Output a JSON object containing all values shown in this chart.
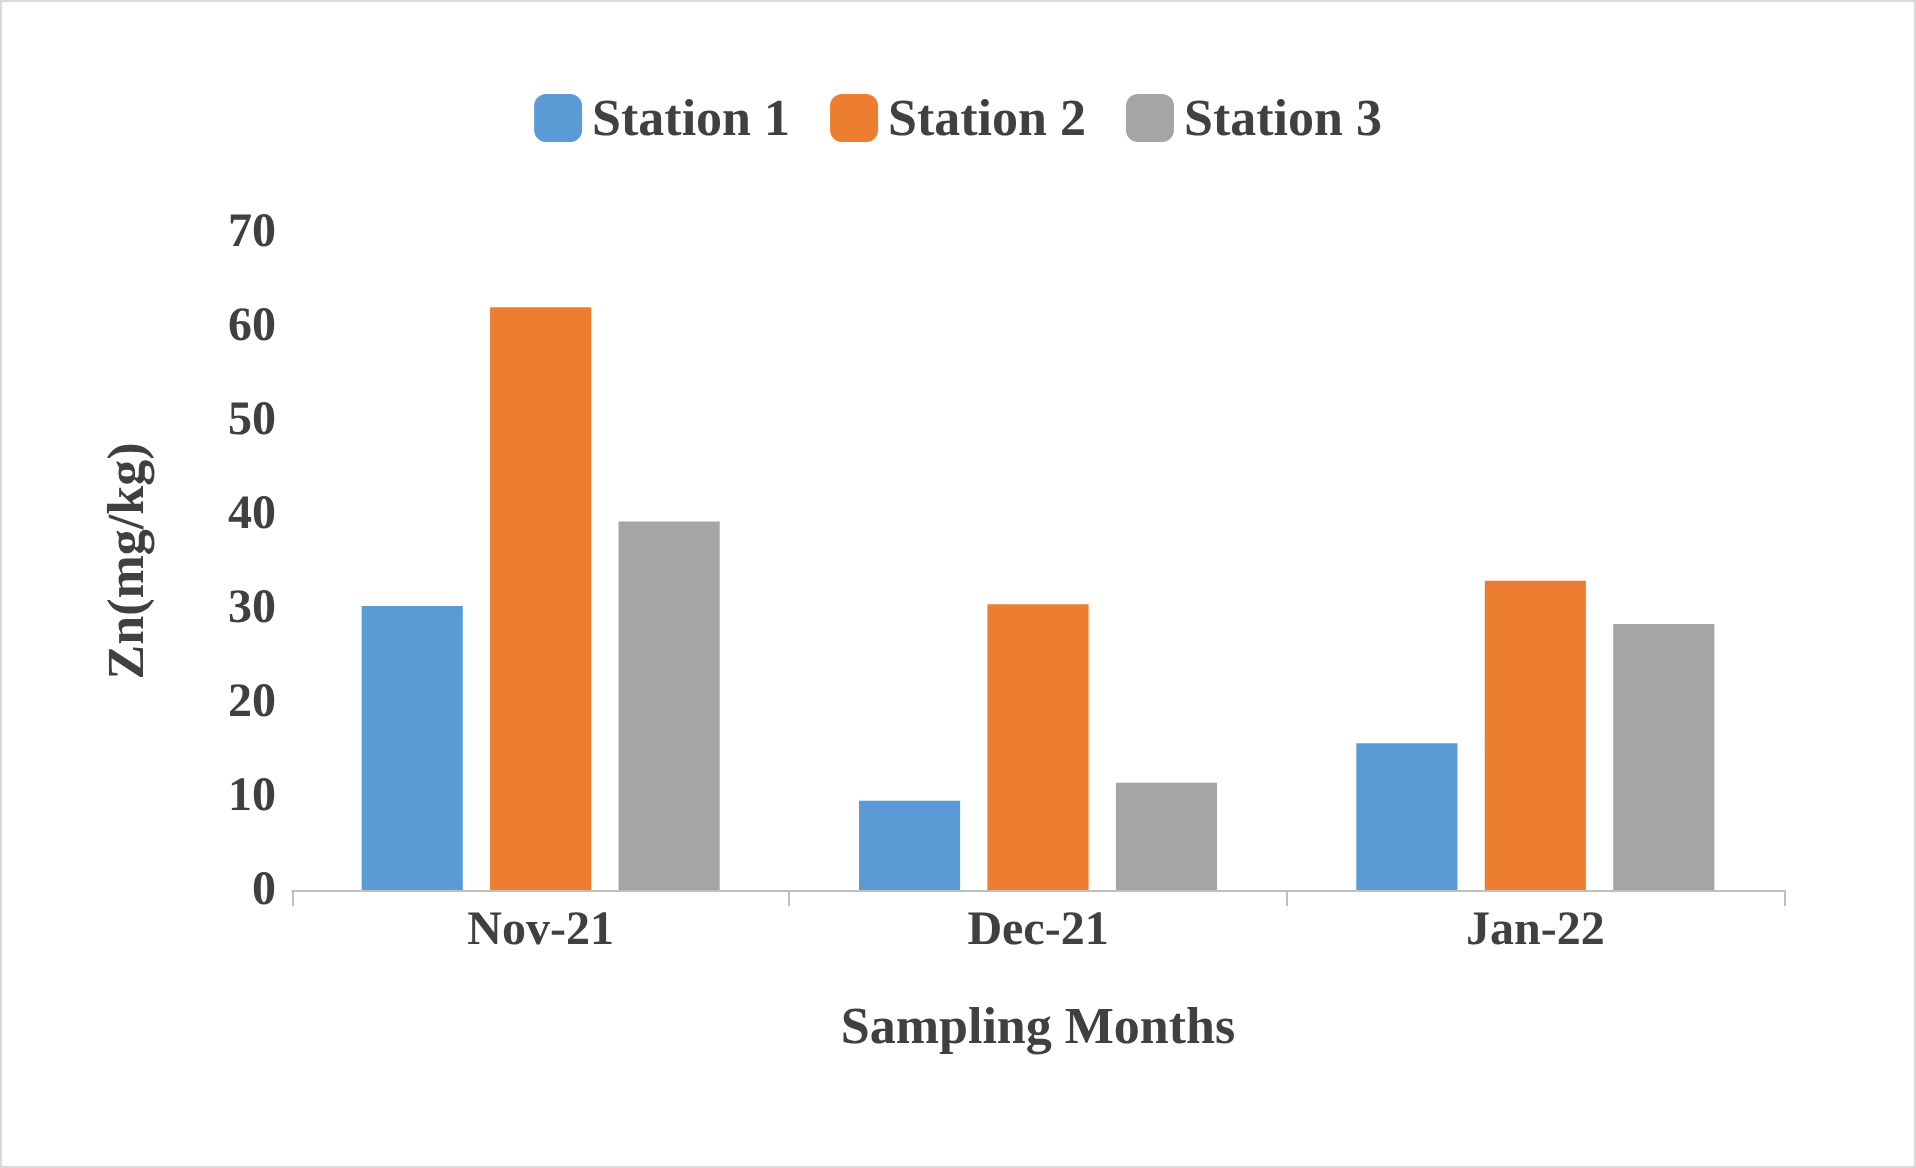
{
  "chart_data": {
    "type": "bar",
    "xlabel": "Sampling Months",
    "ylabel": "Zn(mg/kg)",
    "categories": [
      "Nov-21",
      "Dec-21",
      "Jan-22"
    ],
    "series": [
      {
        "name": "Station 1",
        "color": "#5b9bd5",
        "values": [
          30.2,
          9.5,
          15.6
        ]
      },
      {
        "name": "Station 2",
        "color": "#ed7d31",
        "values": [
          62,
          30.4,
          32.9
        ]
      },
      {
        "name": "Station 3",
        "color": "#a5a5a5",
        "values": [
          39.2,
          11.4,
          28.3
        ]
      }
    ],
    "ylim": [
      0,
      70
    ],
    "yticks": [
      0,
      10,
      20,
      30,
      40,
      50,
      60,
      70
    ],
    "grid": false,
    "legend": "top"
  }
}
